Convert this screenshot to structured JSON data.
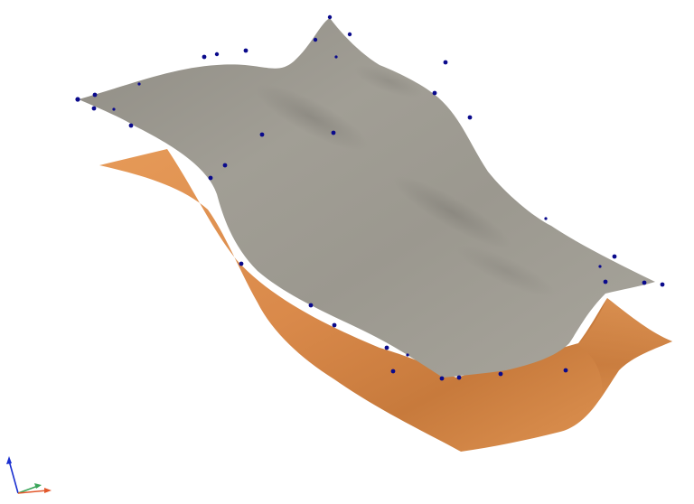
{
  "viewer": {
    "background": "#ffffff",
    "surfaces": [
      {
        "name": "lower-surface",
        "color": "#d98a48"
      },
      {
        "name": "upper-surface",
        "color": "#9a978e"
      }
    ],
    "control_point_color": "#0a0a8c",
    "axis_triad": {
      "x_color": "#e2582b",
      "y_color": "#3aa55a",
      "z_color": "#1a2fd0"
    }
  }
}
